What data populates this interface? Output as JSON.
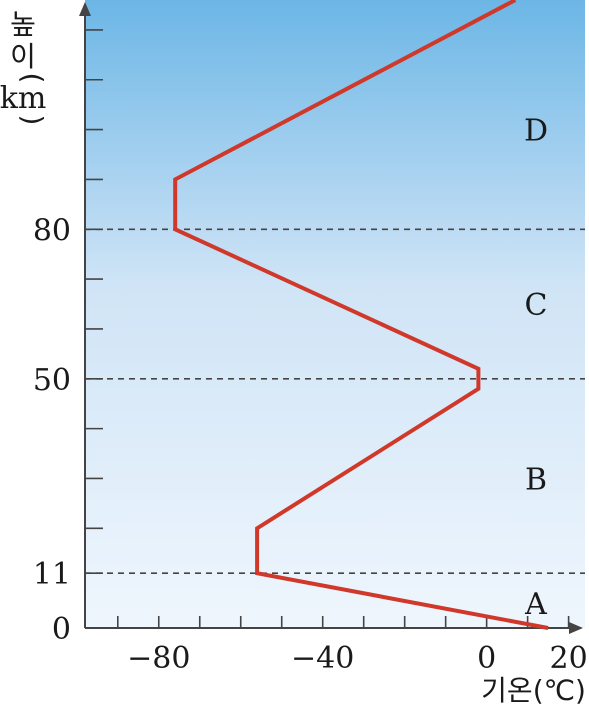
{
  "chart_data": {
    "type": "line",
    "title": "",
    "xlabel": "기온(℃)",
    "ylabel_chars": [
      "높",
      "이",
      "(",
      "km",
      ")"
    ],
    "xlim": [
      -98,
      24
    ],
    "ylim": [
      0,
      126
    ],
    "x_ticks": [
      {
        "value": -80,
        "label": "−80"
      },
      {
        "value": -40,
        "label": "−40"
      },
      {
        "value": 0,
        "label": "0"
      },
      {
        "value": 20,
        "label": "20"
      }
    ],
    "y_ticks": [
      {
        "value": 0,
        "label": "0"
      },
      {
        "value": 11,
        "label": "11"
      },
      {
        "value": 50,
        "label": "50"
      },
      {
        "value": 80,
        "label": "80"
      }
    ],
    "y_minor_ticks": [
      20,
      30,
      40,
      60,
      70,
      90,
      100,
      110,
      120
    ],
    "x_minor_ticks": [
      -90,
      -80,
      -70,
      -60,
      -50,
      -40,
      -30,
      -20,
      -10,
      0,
      10,
      20
    ],
    "boundaries": [
      11,
      50,
      80
    ],
    "layers": [
      {
        "label": "A",
        "y": 5
      },
      {
        "label": "B",
        "y": 30
      },
      {
        "label": "C",
        "y": 65
      },
      {
        "label": "D",
        "y": 100
      }
    ],
    "series": [
      {
        "color": "#d0382a",
        "points": [
          {
            "x": 15,
            "y": 0
          },
          {
            "x": -56,
            "y": 11
          },
          {
            "x": -56,
            "y": 20
          },
          {
            "x": -2,
            "y": 48
          },
          {
            "x": -2,
            "y": 52
          },
          {
            "x": -76,
            "y": 80
          },
          {
            "x": -76,
            "y": 90
          },
          {
            "x": 7,
            "y": 126
          }
        ]
      }
    ],
    "colors": {
      "background_top": "#6cb6e6",
      "background_bottom": "#eff6fd",
      "axis": "#444444",
      "boundary": "#444444",
      "line": "#d0382a"
    },
    "grid": false
  }
}
